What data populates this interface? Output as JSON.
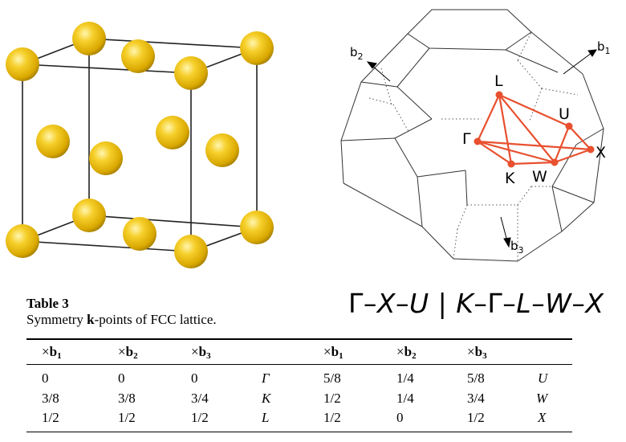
{
  "brillouin_zone": {
    "vector_labels": {
      "b1": "b",
      "b1_sub": "1",
      "b2": "b",
      "b2_sub": "2",
      "b3": "b",
      "b3_sub": "3"
    },
    "points": [
      {
        "id": "Gamma",
        "label": "Γ"
      },
      {
        "id": "L",
        "label": "L"
      },
      {
        "id": "U",
        "label": "U"
      },
      {
        "id": "K",
        "label": "K"
      },
      {
        "id": "W",
        "label": "W"
      },
      {
        "id": "X",
        "label": "X"
      }
    ],
    "path_color": "#e8502f"
  },
  "atom_color": "#f2c200",
  "path": {
    "part1": "Γ–",
    "part2": "X",
    "part3": "–",
    "part4": "U",
    "sep": " | ",
    "part5": "K",
    "part6": "–Γ–",
    "part7": "L",
    "part8": "–",
    "part9": "W",
    "part10": "–",
    "part11": "X"
  },
  "table": {
    "title": "Table 3",
    "caption_pre": "Symmetry ",
    "caption_bold": "k",
    "caption_post": "-points of FCC lattice.",
    "headers": [
      {
        "pre": "×",
        "b": "b",
        "sub": "1"
      },
      {
        "pre": "×",
        "b": "b",
        "sub": "2"
      },
      {
        "pre": "×",
        "b": "b",
        "sub": "3"
      },
      {
        "pre": "",
        "b": "",
        "sub": ""
      },
      {
        "pre": "×",
        "b": "b",
        "sub": "1"
      },
      {
        "pre": "×",
        "b": "b",
        "sub": "2"
      },
      {
        "pre": "×",
        "b": "b",
        "sub": "3"
      },
      {
        "pre": "",
        "b": "",
        "sub": ""
      }
    ],
    "rows": [
      [
        "0",
        "0",
        "0",
        "Γ",
        "5/8",
        "1/4",
        "5/8",
        "U"
      ],
      [
        "3/8",
        "3/8",
        "3/4",
        "K",
        "1/2",
        "1/4",
        "3/4",
        "W"
      ],
      [
        "1/2",
        "1/2",
        "1/2",
        "L",
        "1/2",
        "0",
        "1/2",
        "X"
      ]
    ]
  }
}
